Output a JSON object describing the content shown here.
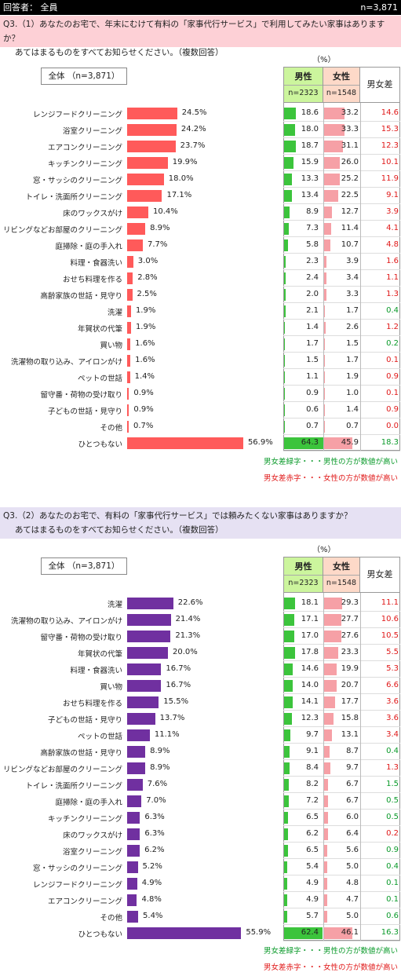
{
  "header": {
    "respondent_label": "回答者： 全員",
    "n_label": "n=3,871"
  },
  "colors": {
    "bar_q1": "#ff5a5a",
    "bar_q2": "#7030a0",
    "male_bar": "#3cc43c",
    "female_bar": "#f6a0a6",
    "male_higher": "#0a9a2a",
    "female_higher": "#e01818",
    "q1_bg": "#fdd0d6",
    "q2_bg": "#e6e1f3",
    "male_header_bg": "#ccf59d",
    "female_header_bg": "#fdd9c8"
  },
  "q1": {
    "line1": "Q3.（1）あなたのお宅で、年末にむけて有料の「家事代行サービス」で利用してみたい家事はありますか？",
    "line2": "あてはまるものをすべてお知らせください。（複数回答）",
    "total_label": "全体 （n=3,871）",
    "pct_unit": "（%）",
    "male_header": "男性",
    "male_n": "n=2323",
    "female_header": "女性",
    "female_n": "n=1548",
    "diff_header": "男女差",
    "legend_green": "男女差緑字・・・男性の方が数値が高い",
    "legend_red": "男女差赤字・・・女性の方が数値が高い"
  },
  "q2": {
    "line1": "Q3.（2）あなたのお宅で、有料の「家事代行サービス」では頼みたくない家事はありますか？",
    "line2": "あてはまるものをすべてお知らせください。（複数回答）",
    "total_label": "全体 （n=3,871）",
    "pct_unit": "（%）",
    "male_header": "男性",
    "male_n": "n=2323",
    "female_header": "女性",
    "female_n": "n=1548",
    "diff_header": "男女差",
    "legend_green": "男女差緑字・・・男性の方が数値が高い",
    "legend_red": "男女差赤字・・・女性の方が数値が高い"
  },
  "chart_data": [
    {
      "type": "bar",
      "title": "Q3.（1）あなたのお宅で、年末にむけて有料の「家事代行サービス」で利用してみたい家事はありますか？",
      "categories": [
        "レンジフードクリーニング",
        "浴室クリーニング",
        "エアコンクリーニング",
        "キッチンクリーニング",
        "窓・サッシのクリーニング",
        "トイレ・洗面所クリーニング",
        "床のワックスがけ",
        "リビングなどお部屋のクリーニング",
        "庭掃除・庭の手入れ",
        "料理・食器洗い",
        "おせち料理を作る",
        "高齢家族の世話・見守り",
        "洗濯",
        "年賀状の代筆",
        "買い物",
        "洗濯物の取り込み、アイロンがけ",
        "ペットの世話",
        "留守番・荷物の受け取り",
        "子どもの世話・見守り",
        "その他",
        "ひとつもない"
      ],
      "series": [
        {
          "name": "全体 （n=3,871）",
          "values": [
            24.5,
            24.2,
            23.7,
            19.9,
            18.0,
            17.1,
            10.4,
            8.9,
            7.7,
            3.0,
            2.8,
            2.5,
            1.9,
            1.9,
            1.6,
            1.6,
            1.4,
            0.9,
            0.9,
            0.7,
            56.9
          ]
        },
        {
          "name": "男性",
          "values": [
            18.6,
            18.0,
            18.7,
            15.9,
            13.3,
            13.4,
            8.9,
            7.3,
            5.8,
            2.3,
            2.4,
            2.0,
            2.1,
            1.4,
            1.7,
            1.5,
            1.1,
            0.9,
            0.6,
            0.7,
            64.3
          ]
        },
        {
          "name": "女性",
          "values": [
            33.2,
            33.3,
            31.1,
            26.0,
            25.2,
            22.5,
            12.7,
            11.4,
            10.7,
            3.9,
            3.4,
            3.3,
            1.7,
            2.6,
            1.5,
            1.7,
            1.9,
            1.0,
            1.4,
            0.7,
            45.9
          ]
        },
        {
          "name": "男女差",
          "values": [
            14.6,
            15.3,
            12.3,
            10.1,
            11.9,
            9.1,
            3.9,
            4.1,
            4.8,
            1.6,
            1.1,
            1.3,
            0.4,
            1.2,
            0.2,
            0.1,
            0.9,
            0.1,
            0.9,
            0.0,
            18.3
          ]
        }
      ],
      "diff_color": [
        "r",
        "r",
        "r",
        "r",
        "r",
        "r",
        "r",
        "r",
        "r",
        "r",
        "r",
        "r",
        "g",
        "r",
        "g",
        "r",
        "r",
        "r",
        "r",
        "r",
        "g"
      ],
      "total_labels": [
        "24.5%",
        "24.2%",
        "23.7%",
        "19.9%",
        "18.0%",
        "17.1%",
        "10.4%",
        "8.9%",
        "7.7%",
        "3.0%",
        "2.8%",
        "2.5%",
        "1.9%",
        "1.9%",
        "1.6%",
        "1.6%",
        "1.4%",
        "0.9%",
        "0.9%",
        "0.7%",
        "56.9%"
      ],
      "male_labels": [
        "18.6",
        "18.0",
        "18.7",
        "15.9",
        "13.3",
        "13.4",
        "8.9",
        "7.3",
        "5.8",
        "2.3",
        "2.4",
        "2.0",
        "2.1",
        "1.4",
        "1.7",
        "1.5",
        "1.1",
        "0.9",
        "0.6",
        "0.7",
        "64.3"
      ],
      "female_labels": [
        "33.2",
        "33.3",
        "31.1",
        "26.0",
        "25.2",
        "22.5",
        "12.7",
        "11.4",
        "10.7",
        "3.9",
        "3.4",
        "3.3",
        "1.7",
        "2.6",
        "1.5",
        "1.7",
        "1.9",
        "1.0",
        "1.4",
        "0.7",
        "45.9"
      ],
      "diff_labels": [
        "14.6",
        "15.3",
        "12.3",
        "10.1",
        "11.9",
        "9.1",
        "3.9",
        "4.1",
        "4.8",
        "1.6",
        "1.1",
        "1.3",
        "0.4",
        "1.2",
        "0.2",
        "0.1",
        "0.9",
        "0.1",
        "0.9",
        "0.0",
        "18.3"
      ]
    },
    {
      "type": "bar",
      "title": "Q3.（2）あなたのお宅で、有料の「家事代行サービス」では頼みたくない家事はありますか？",
      "categories": [
        "洗濯",
        "洗濯物の取り込み、アイロンがけ",
        "留守番・荷物の受け取り",
        "年賀状の代筆",
        "料理・食器洗い",
        "買い物",
        "おせち料理を作る",
        "子どもの世話・見守り",
        "ペットの世話",
        "高齢家族の世話・見守り",
        "リビングなどお部屋のクリーニング",
        "トイレ・洗面所クリーニング",
        "庭掃除・庭の手入れ",
        "キッチンクリーニング",
        "床のワックスがけ",
        "浴室クリーニング",
        "窓・サッシのクリーニング",
        "レンジフードクリーニング",
        "エアコンクリーニング",
        "その他",
        "ひとつもない"
      ],
      "series": [
        {
          "name": "全体 （n=3,871）",
          "values": [
            22.6,
            21.4,
            21.3,
            20.0,
            16.7,
            16.7,
            15.5,
            13.7,
            11.1,
            8.9,
            8.9,
            7.6,
            7.0,
            6.3,
            6.3,
            6.2,
            5.2,
            4.9,
            4.8,
            5.4,
            55.9
          ]
        },
        {
          "name": "男性",
          "values": [
            18.1,
            17.1,
            17.0,
            17.8,
            14.6,
            14.0,
            14.1,
            12.3,
            9.7,
            9.1,
            8.4,
            8.2,
            7.2,
            6.5,
            6.2,
            6.5,
            5.4,
            4.9,
            4.9,
            5.7,
            62.4
          ]
        },
        {
          "name": "女性",
          "values": [
            29.3,
            27.7,
            27.6,
            23.3,
            19.9,
            20.7,
            17.7,
            15.8,
            13.1,
            8.7,
            9.7,
            6.7,
            6.7,
            6.0,
            6.4,
            5.6,
            5.0,
            4.8,
            4.7,
            5.0,
            46.1
          ]
        },
        {
          "name": "男女差",
          "values": [
            11.1,
            10.6,
            10.5,
            5.5,
            5.3,
            6.6,
            3.6,
            3.6,
            3.4,
            0.4,
            1.3,
            1.5,
            0.5,
            0.5,
            0.2,
            0.9,
            0.4,
            0.1,
            0.1,
            0.6,
            16.3
          ]
        }
      ],
      "diff_color": [
        "r",
        "r",
        "r",
        "r",
        "r",
        "r",
        "r",
        "r",
        "r",
        "g",
        "r",
        "g",
        "g",
        "g",
        "r",
        "g",
        "g",
        "g",
        "g",
        "g",
        "g"
      ],
      "total_labels": [
        "22.6%",
        "21.4%",
        "21.3%",
        "20.0%",
        "16.7%",
        "16.7%",
        "15.5%",
        "13.7%",
        "11.1%",
        "8.9%",
        "8.9%",
        "7.6%",
        "7.0%",
        "6.3%",
        "6.3%",
        "6.2%",
        "5.2%",
        "4.9%",
        "4.8%",
        "5.4%",
        "55.9%"
      ],
      "male_labels": [
        "18.1",
        "17.1",
        "17.0",
        "17.8",
        "14.6",
        "14.0",
        "14.1",
        "12.3",
        "9.7",
        "9.1",
        "8.4",
        "8.2",
        "7.2",
        "6.5",
        "6.2",
        "6.5",
        "5.4",
        "4.9",
        "4.9",
        "5.7",
        "62.4"
      ],
      "female_labels": [
        "29.3",
        "27.7",
        "27.6",
        "23.3",
        "19.9",
        "20.7",
        "17.7",
        "15.8",
        "13.1",
        "8.7",
        "9.7",
        "6.7",
        "6.7",
        "6.0",
        "6.4",
        "5.6",
        "5.0",
        "4.8",
        "4.7",
        "5.0",
        "46.1"
      ],
      "diff_labels": [
        "11.1",
        "10.6",
        "10.5",
        "5.5",
        "5.3",
        "6.6",
        "3.6",
        "3.6",
        "3.4",
        "0.4",
        "1.3",
        "1.5",
        "0.5",
        "0.5",
        "0.2",
        "0.9",
        "0.4",
        "0.1",
        "0.1",
        "0.6",
        "16.3"
      ]
    }
  ]
}
